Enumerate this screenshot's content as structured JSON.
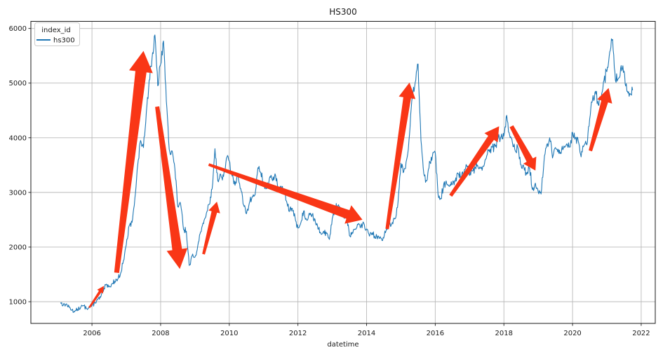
{
  "chart_data": {
    "type": "line",
    "title": "HS300",
    "xlabel": "datetime",
    "ylabel": "",
    "legend": {
      "title": "index_id",
      "position": "upper-left"
    },
    "grid": true,
    "xlim": [
      2004.22,
      2022.41
    ],
    "ylim": [
      603,
      6130
    ],
    "x_ticks": [
      2006,
      2008,
      2010,
      2012,
      2014,
      2016,
      2018,
      2020,
      2022
    ],
    "y_ticks": [
      1000,
      2000,
      3000,
      4000,
      5000,
      6000
    ],
    "annotation_color": "#f93616",
    "series": [
      {
        "name": "hs300",
        "color": "#1f77b4",
        "x_start_year": 2005,
        "x_start_month": 1,
        "x_step_months": 1,
        "values": [
          982,
          940,
          960,
          900,
          850,
          818,
          860,
          890,
          930,
          880,
          910,
          924,
          985,
          1040,
          1080,
          1190,
          1320,
          1290,
          1330,
          1370,
          1410,
          1520,
          1750,
          2041,
          2390,
          2450,
          2900,
          3500,
          3950,
          3820,
          4470,
          5050,
          5450,
          5880,
          4950,
          5340,
          5770,
          4670,
          3790,
          3760,
          3430,
          2740,
          2780,
          2320,
          2290,
          1663,
          1840,
          1817,
          2030,
          2280,
          2430,
          2620,
          2780,
          3060,
          3800,
          3210,
          3330,
          3290,
          3620,
          3576,
          3300,
          3130,
          3350,
          3070,
          2770,
          2610,
          2800,
          2920,
          2950,
          3450,
          3370,
          3128,
          3070,
          3250,
          3230,
          3340,
          3070,
          3080,
          3010,
          2840,
          2650,
          2710,
          2540,
          2346,
          2440,
          2660,
          2500,
          2620,
          2590,
          2500,
          2330,
          2250,
          2290,
          2250,
          2140,
          2523,
          2730,
          2760,
          2670,
          2550,
          2600,
          2210,
          2270,
          2330,
          2410,
          2380,
          2440,
          2331,
          2200,
          2260,
          2160,
          2200,
          2160,
          2165,
          2340,
          2420,
          2450,
          2520,
          2830,
          3534,
          3380,
          3600,
          4060,
          4750,
          5010,
          5350,
          3960,
          3340,
          3210,
          3570,
          3660,
          3731,
          2960,
          2880,
          3160,
          3160,
          3110,
          3150,
          3200,
          3340,
          3290,
          3340,
          3490,
          3310,
          3390,
          3450,
          3460,
          3440,
          3480,
          3670,
          3740,
          3830,
          3840,
          4000,
          4020,
          4030,
          4410,
          4050,
          3900,
          3760,
          3800,
          3510,
          3450,
          3330,
          3440,
          3050,
          3170,
          3010,
          2970,
          3550,
          3870,
          4000,
          3630,
          3820,
          3790,
          3710,
          3850,
          3890,
          3830,
          4097,
          4000,
          3940,
          3650,
          3860,
          3870,
          4340,
          4700,
          4850,
          4600,
          4700,
          5050,
          5211,
          5570,
          5800,
          5050,
          5080,
          5320,
          5220,
          4850,
          4810,
          4870
        ]
      }
    ],
    "annotations": [
      {
        "from": [
          2005.92,
          890
        ],
        "to": [
          2006.35,
          1290
        ],
        "tail_w": 2.5,
        "head_w": 4,
        "head_len": 10,
        "head_flare": 10
      },
      {
        "from": [
          2006.72,
          1530
        ],
        "to": [
          2007.5,
          5590
        ],
        "tail_w": 7,
        "head_w": 16,
        "head_len": 30,
        "head_flare": 34
      },
      {
        "from": [
          2007.9,
          4570
        ],
        "to": [
          2008.56,
          1600
        ],
        "tail_w": 6,
        "head_w": 14,
        "head_len": 28,
        "head_flare": 30
      },
      {
        "from": [
          2009.25,
          1870
        ],
        "to": [
          2009.64,
          2830
        ],
        "tail_w": 4,
        "head_w": 8,
        "head_len": 15,
        "head_flare": 17
      },
      {
        "from": [
          2009.4,
          3510
        ],
        "to": [
          2013.88,
          2500
        ],
        "tail_w": 4,
        "head_w": 13,
        "head_len": 22,
        "head_flare": 28
      },
      {
        "from": [
          2014.6,
          2330
        ],
        "to": [
          2015.25,
          5010
        ],
        "tail_w": 5,
        "head_w": 11,
        "head_len": 22,
        "head_flare": 24
      },
      {
        "from": [
          2016.45,
          2940
        ],
        "to": [
          2017.86,
          4210
        ],
        "tail_w": 5,
        "head_w": 10,
        "head_len": 20,
        "head_flare": 23
      },
      {
        "from": [
          2018.22,
          4210
        ],
        "to": [
          2018.92,
          3400
        ],
        "tail_w": 6,
        "head_w": 10,
        "head_len": 17,
        "head_flare": 21
      },
      {
        "from": [
          2020.52,
          3760
        ],
        "to": [
          2021.05,
          4910
        ],
        "tail_w": 5,
        "head_w": 10,
        "head_len": 20,
        "head_flare": 22
      }
    ]
  },
  "colors": {
    "grid": "#b9b9b9",
    "spine": "#1a1a1a",
    "text": "#1a1a1a",
    "legend_border": "#cccccc"
  }
}
